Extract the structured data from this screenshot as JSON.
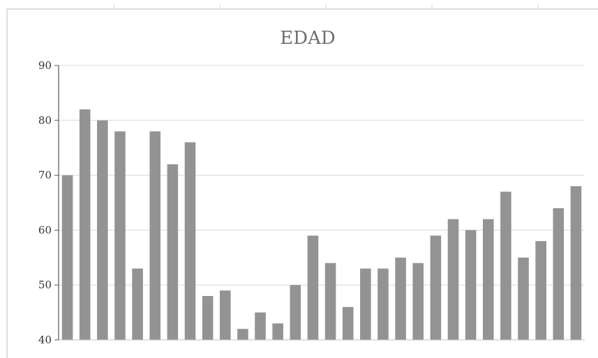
{
  "chart_data": {
    "type": "bar",
    "title": "EDAD",
    "xlabel": "",
    "ylabel": "",
    "ylim": [
      40,
      90
    ],
    "yticks": [
      40,
      50,
      60,
      70,
      80,
      90
    ],
    "grid": true,
    "legend": "none",
    "bar_color": "#939393",
    "values": [
      70,
      82,
      80,
      78,
      53,
      78,
      72,
      76,
      48,
      49,
      42,
      45,
      43,
      50,
      59,
      54,
      46,
      53,
      53,
      55,
      54,
      59,
      62,
      60,
      62,
      67,
      55,
      58,
      64,
      68
    ]
  }
}
